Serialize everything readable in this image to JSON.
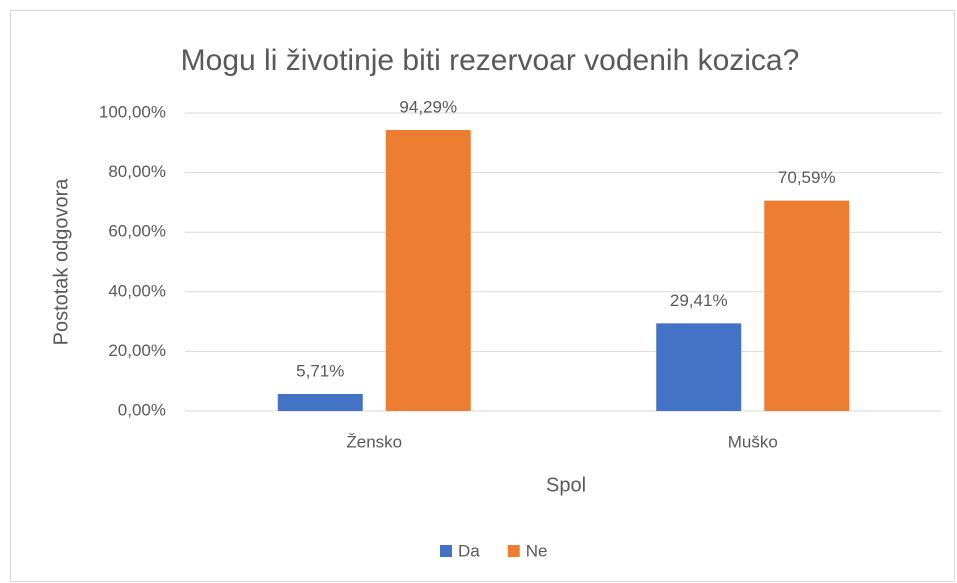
{
  "chart_data": {
    "type": "bar",
    "title": "Mogu li životinje biti rezervoar vodenih kozica?",
    "x_label": "Spol",
    "y_label": "Postotak odgovora",
    "categories": [
      "Žensko",
      "Muško"
    ],
    "series": [
      {
        "name": "Da",
        "color": "#4472c4",
        "values": [
          5.71,
          29.41
        ],
        "value_labels": [
          "5,71%",
          "29,41%"
        ]
      },
      {
        "name": "Ne",
        "color": "#ed7d31",
        "values": [
          94.29,
          70.59
        ],
        "value_labels": [
          "94,29%",
          "70,59%"
        ]
      }
    ],
    "ylim": [
      0,
      100
    ],
    "yticks": [
      {
        "value": 0,
        "label": "0,00%"
      },
      {
        "value": 20,
        "label": "20,00%"
      },
      {
        "value": 40,
        "label": "40,00%"
      },
      {
        "value": 60,
        "label": "60,00%"
      },
      {
        "value": 80,
        "label": "80,00%"
      },
      {
        "value": 100,
        "label": "100,00%"
      }
    ],
    "grid": true,
    "legend": "bottom"
  }
}
